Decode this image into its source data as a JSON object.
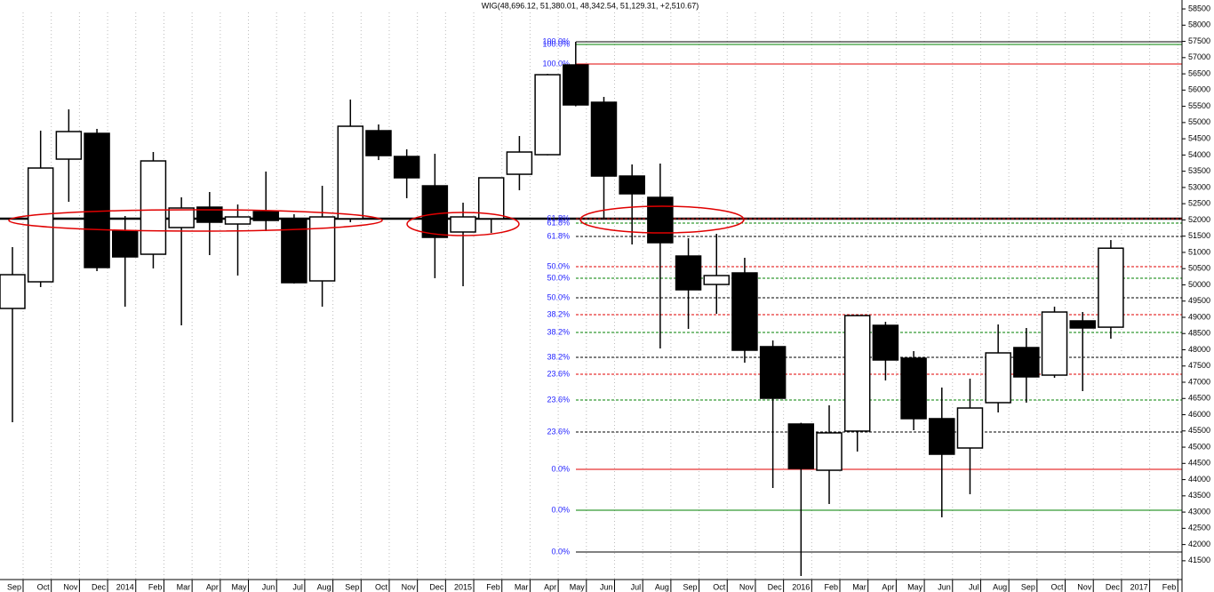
{
  "chart_data": {
    "type": "candlestick",
    "title": "WIG(48,696.12, 51,380.01, 48,342.54, 51,129.31, +2,510.67)",
    "categories": [
      "Sep",
      "Oct",
      "Nov",
      "Dec",
      "2014",
      "Feb",
      "Mar",
      "Apr",
      "May",
      "Jun",
      "Jul",
      "Aug",
      "Sep",
      "Oct",
      "Nov",
      "Dec",
      "2015",
      "Feb",
      "Mar",
      "Apr",
      "May",
      "Jun",
      "Jul",
      "Aug",
      "Sep",
      "Oct",
      "Nov",
      "Dec",
      "2016",
      "Feb",
      "Mar",
      "Apr",
      "May",
      "Jun",
      "Jul",
      "Aug",
      "Sep",
      "Oct",
      "Nov",
      "Dec",
      "2017",
      "Feb"
    ],
    "open": [
      49273,
      50094,
      53873,
      54667,
      51655,
      50943,
      51765,
      52394,
      51874,
      52257,
      52038,
      50122,
      52038,
      54749,
      53955,
      53051,
      51628,
      52038,
      53407,
      54010,
      56775,
      55625,
      53352,
      52695,
      50888,
      50012,
      50368,
      48096,
      45713,
      44289,
      45495,
      48753,
      47740,
      45878,
      44974,
      46371,
      48068,
      47219,
      48890,
      48696.12,
      null,
      null
    ],
    "high": [
      51162,
      54749,
      55406,
      54804,
      52120,
      54092,
      52696,
      52860,
      52476,
      53490,
      52175,
      53051,
      55707,
      54941,
      54174,
      54037,
      52531,
      53310,
      54585,
      56500,
      57487,
      55789,
      53709,
      53736,
      51436,
      51573,
      50834,
      48287,
      45750,
      46289,
      49080,
      48862,
      47959,
      46836,
      47110,
      48780,
      48671,
      49328,
      49163,
      51380.01,
      null,
      null
    ],
    "low": [
      45768,
      49930,
      52558,
      50423,
      49328,
      50505,
      48753,
      50916,
      50286,
      51655,
      50040,
      49328,
      51929,
      53845,
      52668,
      50204,
      49957,
      51600,
      52914,
      53990,
      55500,
      52011,
      51244,
      48041,
      48643,
      49109,
      47603,
      43742,
      41032,
      43249,
      44864,
      47055,
      45522,
      42839,
      43551,
      46069,
      46371,
      47137,
      46727,
      48342.54,
      null,
      null
    ],
    "close": [
      50313,
      53599,
      54722,
      50533,
      50861,
      53818,
      52367,
      51929,
      52093,
      51984,
      50067,
      52093,
      54886,
      53982,
      53298,
      51463,
      52093,
      53298,
      54092,
      56474,
      55543,
      53352,
      52805,
      51299,
      49848,
      50286,
      47986,
      46507,
      44344,
      45440,
      49054,
      47685,
      45878,
      44782,
      46206,
      47904,
      47165,
      49163,
      48671,
      51129.31,
      null,
      null
    ],
    "up_color": "#ffffff",
    "down_color": "#000000",
    "ylim": [
      41250,
      58775
    ],
    "yticks": [
      41500,
      42000,
      42500,
      43000,
      43500,
      44000,
      44500,
      45000,
      45500,
      46000,
      46500,
      47000,
      47500,
      48000,
      48500,
      49000,
      49500,
      50000,
      50500,
      51000,
      51500,
      52000,
      52500,
      53000,
      53500,
      54000,
      54500,
      55000,
      55500,
      56000,
      56500,
      57000,
      57500,
      58000,
      58500
    ],
    "grid": true,
    "reference_line": 52040,
    "fib_sets": [
      {
        "color": "#e00000",
        "levels": [
          {
            "value": 56802,
            "label": "100.0%"
          },
          {
            "value": 52038,
            "label": "61.8%"
          },
          {
            "value": 50560,
            "label": "50.0%"
          },
          {
            "value": 49081,
            "label": "38.2%"
          },
          {
            "value": 47247,
            "label": "23.6%"
          },
          {
            "value": 44317,
            "label": "0.0%"
          }
        ]
      },
      {
        "color": "#008000",
        "levels": [
          {
            "value": 57405,
            "label": "100.0%"
          },
          {
            "value": 51901,
            "label": "61.8%"
          },
          {
            "value": 50204,
            "label": "50.0%"
          },
          {
            "value": 48534,
            "label": "38.2%"
          },
          {
            "value": 46453,
            "label": "23.6%"
          },
          {
            "value": 43058,
            "label": "0.0%"
          }
        ]
      },
      {
        "color": "#000000",
        "levels": [
          {
            "value": 57487,
            "label": "100.0%"
          },
          {
            "value": 51490,
            "label": "61.8%"
          },
          {
            "value": 49601,
            "label": "50.0%"
          },
          {
            "value": 47767,
            "label": "38.2%"
          },
          {
            "value": 45467,
            "label": "23.6%"
          },
          {
            "value": 41771,
            "label": "0.0%"
          }
        ]
      }
    ]
  }
}
